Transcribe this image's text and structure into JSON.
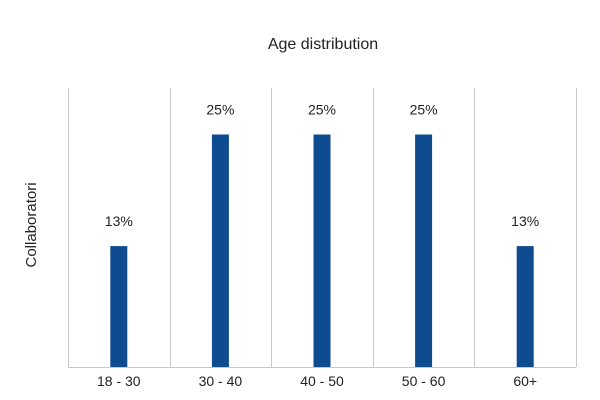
{
  "chart_data": {
    "type": "bar",
    "title": "Age distribution",
    "xlabel": "",
    "ylabel": "Collaboratori",
    "categories": [
      "18 - 30",
      "30 - 40",
      "40 - 50",
      "50 - 60",
      "60+"
    ],
    "values": [
      13,
      25,
      25,
      25,
      13
    ],
    "data_labels": [
      "13%",
      "25%",
      "25%",
      "25%",
      "13%"
    ],
    "unit": "%",
    "ylim": [
      0,
      30
    ],
    "grid": "vertical separators between categories",
    "legend": "none",
    "bar_color": "#0f4b8f",
    "grid_color": "#c8c8c8"
  }
}
